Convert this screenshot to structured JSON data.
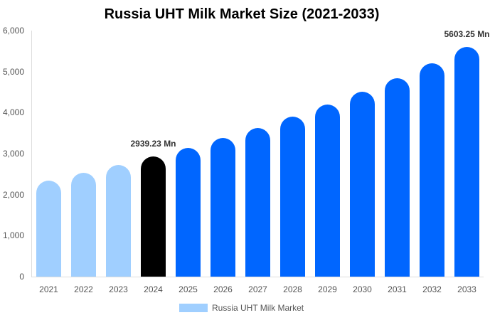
{
  "chart_data": {
    "type": "bar",
    "title": "Russia UHT Milk Market Size (2021-2033)",
    "xlabel": "",
    "ylabel": "",
    "ylim": [
      0,
      6000
    ],
    "yticks": [
      "0",
      "1,000",
      "2,000",
      "3,000",
      "4,000",
      "5,000",
      "6,000"
    ],
    "categories": [
      "2021",
      "2022",
      "2023",
      "2024",
      "2025",
      "2026",
      "2027",
      "2028",
      "2029",
      "2030",
      "2031",
      "2032",
      "2033"
    ],
    "series": [
      {
        "name": "Russia UHT Milk Market",
        "values": [
          2340,
          2530,
          2720,
          2939.23,
          3140,
          3380,
          3620,
          3900,
          4190,
          4510,
          4840,
          5200,
          5603.25
        ]
      }
    ],
    "bar_colors": [
      "#a0cfff",
      "#a0cfff",
      "#a0cfff",
      "#000000",
      "#0066ff",
      "#0066ff",
      "#0066ff",
      "#0066ff",
      "#0066ff",
      "#0066ff",
      "#0066ff",
      "#0066ff",
      "#0066ff"
    ],
    "annotations": [
      {
        "index": 3,
        "text": "2939.23 Mn"
      },
      {
        "index": 12,
        "text": "5603.25 Mn"
      }
    ],
    "legend": {
      "label": "Russia UHT Milk Market",
      "color": "#a0cfff",
      "position": "bottom"
    },
    "grid": false
  }
}
